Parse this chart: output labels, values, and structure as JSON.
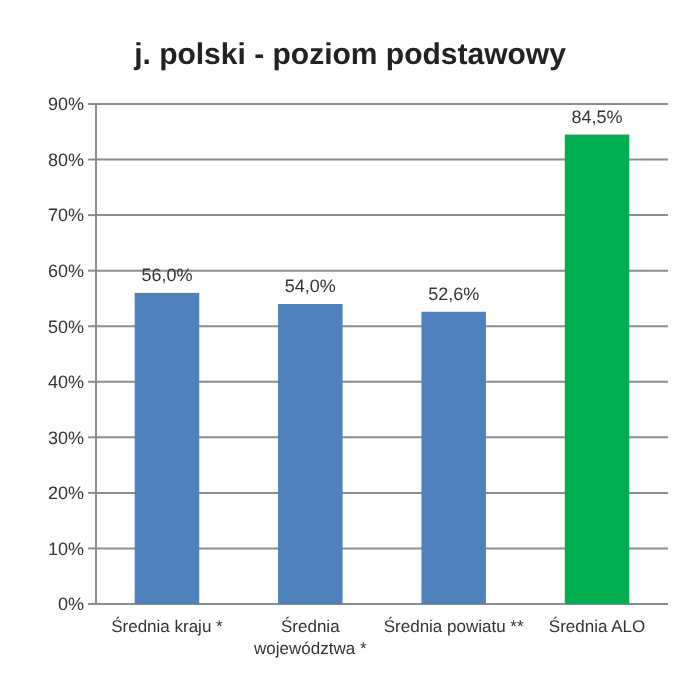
{
  "chart_data": {
    "type": "bar",
    "title": "j. polski - poziom podstawowy",
    "categories": [
      "Średnia kraju *",
      "Średnia województwa *",
      "Średnia powiatu **",
      "Średnia ALO"
    ],
    "values": [
      56.0,
      54.0,
      52.6,
      84.5
    ],
    "colors": [
      "#4f81bd",
      "#4f81bd",
      "#4f81bd",
      "#00b050"
    ],
    "value_labels": [
      "56,0%",
      "54,0%",
      "52,6%",
      "84,5%"
    ],
    "ylim": [
      0,
      90
    ],
    "yticks": [
      {
        "value": 0,
        "label": "0%"
      },
      {
        "value": 10,
        "label": "10%"
      },
      {
        "value": 20,
        "label": "20%"
      },
      {
        "value": 30,
        "label": "30%"
      },
      {
        "value": 40,
        "label": "40%"
      },
      {
        "value": 50,
        "label": "50%"
      },
      {
        "value": 60,
        "label": "60%"
      },
      {
        "value": 70,
        "label": "70%"
      },
      {
        "value": 80,
        "label": "80%"
      },
      {
        "value": 90,
        "label": "90%"
      }
    ],
    "grid": "y"
  }
}
